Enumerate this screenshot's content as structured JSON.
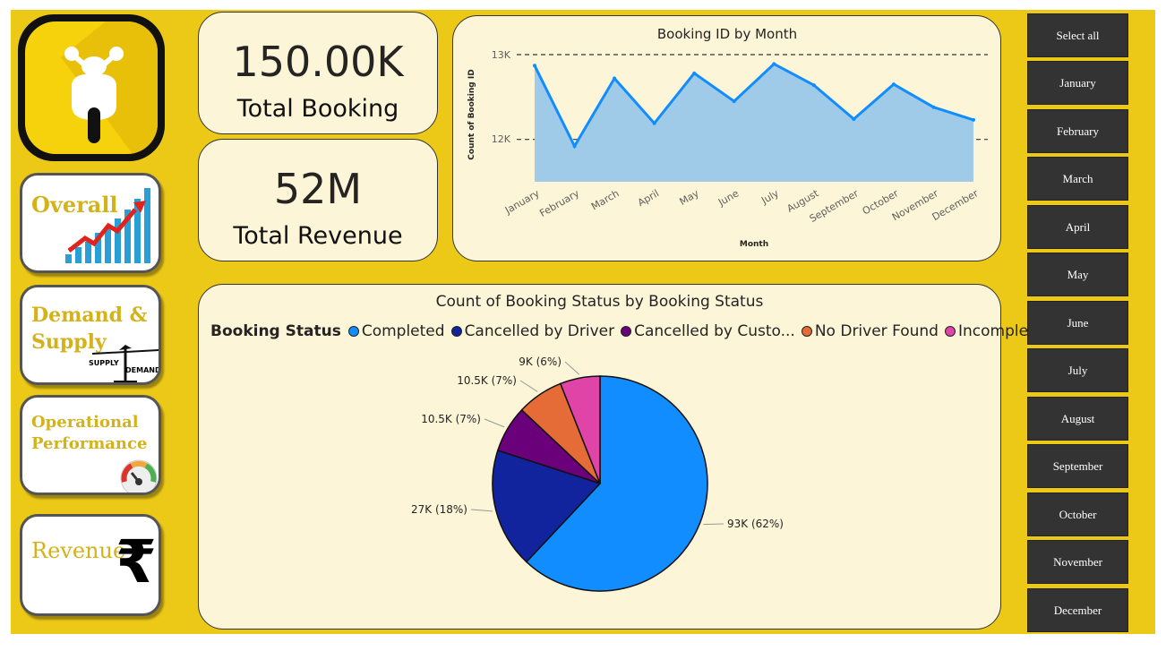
{
  "kpis": {
    "bookings_value": "150.00K",
    "bookings_label": "Total Booking",
    "revenue_value": "52M",
    "revenue_label": "Total Revenue"
  },
  "nav": {
    "overall": "Overall",
    "demand_supply": "Demand & Supply",
    "supply_word": "SUPPLY",
    "demand_word": "DEMAND",
    "operational": "Operational Performance",
    "revenue": "Revenue"
  },
  "line_chart": {
    "title": "Booking ID by Month",
    "xlabel": "Month",
    "ylabel": "Count of Booking ID",
    "ytick_top": "13K",
    "ytick_mid": "12K"
  },
  "pie_chart": {
    "title": "Count of Booking Status by Booking Status",
    "legend_title": "Booking Status"
  },
  "slicer": {
    "items": [
      "Select all",
      "January",
      "February",
      "March",
      "April",
      "May",
      "June",
      "July",
      "August",
      "September",
      "October",
      "November",
      "December"
    ]
  },
  "colors": {
    "background": "#EDC917",
    "card": "#FCF5D7",
    "line": "#118DFF",
    "area": "#A0CBE8",
    "slicer": "#333333"
  },
  "chart_data": [
    {
      "type": "area",
      "title": "Booking ID by Month",
      "xlabel": "Month",
      "ylabel": "Count of Booking ID",
      "categories": [
        "January",
        "February",
        "March",
        "April",
        "May",
        "June",
        "July",
        "August",
        "September",
        "October",
        "November",
        "December"
      ],
      "values": [
        12870,
        11920,
        12720,
        12190,
        12780,
        12450,
        12890,
        12640,
        12240,
        12650,
        12380,
        12230
      ],
      "ylim": [
        11500,
        13000
      ],
      "yticks": [
        "12K",
        "13K"
      ],
      "grid": "dashed reference lines at 12K and 13K"
    },
    {
      "type": "pie",
      "title": "Count of Booking Status by Booking Status",
      "legend_title": "Booking Status",
      "legend_position": "top",
      "slices": [
        {
          "name": "Completed",
          "legend_label": "Completed",
          "value": 93,
          "label": "93K (62%)",
          "color": "#118DFF"
        },
        {
          "name": "Cancelled by Driver",
          "legend_label": "Cancelled by Driver",
          "value": 27,
          "label": "27K (18%)",
          "color": "#12239E"
        },
        {
          "name": "Cancelled by Customer",
          "legend_label": "Cancelled by Custo...",
          "value": 10.5,
          "label": "10.5K (7%)",
          "color": "#6B007B"
        },
        {
          "name": "No Driver Found",
          "legend_label": "No Driver Found",
          "value": 10.5,
          "label": "10.5K (7%)",
          "color": "#E66C37"
        },
        {
          "name": "Incomplete",
          "legend_label": "Incomplete",
          "value": 9,
          "label": "9K (6%)",
          "color": "#E044A7"
        }
      ]
    }
  ]
}
